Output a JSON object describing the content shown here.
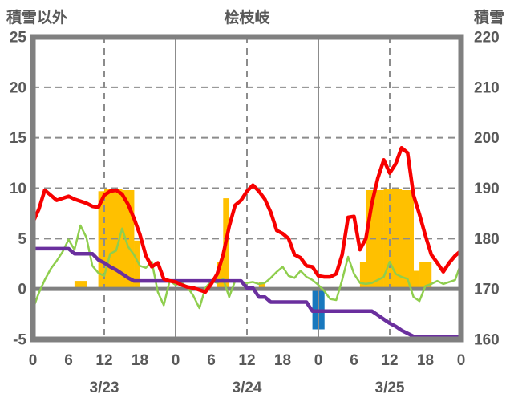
{
  "page": {
    "background": "#ffffff"
  },
  "header": {
    "left_axis_title": "積雪以外",
    "chart_title": "桧枝岐",
    "right_axis_title": "積雪"
  },
  "chart_data": {
    "type": "line+bar",
    "title": "桧枝岐",
    "left_axis": {
      "label": "積雪以外",
      "min": -5,
      "max": 25,
      "ticks": [
        25,
        20,
        15,
        10,
        5,
        0,
        -5
      ]
    },
    "right_axis": {
      "label": "積雪",
      "min": 160,
      "max": 220,
      "ticks": [
        220,
        210,
        200,
        190,
        180,
        170,
        160
      ]
    },
    "x_axis": {
      "total_hours": 72,
      "hour_tick_labels": [
        "0",
        "6",
        "12",
        "18"
      ],
      "day_labels": [
        "3/23",
        "3/24",
        "3/25"
      ],
      "day_label_hours": [
        12,
        36,
        60
      ],
      "solid_line_hours": [
        24,
        48
      ],
      "dashed_line_hours": [
        12,
        36,
        60
      ]
    },
    "grid": {
      "h_dashed_values": [
        20,
        15,
        10,
        5
      ],
      "zero_line_value": 0
    },
    "colors": {
      "red": "#f70000",
      "green": "#8fce4e",
      "purple": "#6a2f9e",
      "orange": "#ffc000",
      "blue": "#1878be",
      "grid": "#8c8c8c",
      "border": "#808080",
      "text": "#595959"
    },
    "series": {
      "red_line": {
        "type": "line",
        "axis": "left",
        "color_key": "red",
        "stroke_width": 4.5,
        "values": [
          6.6,
          7.9,
          9.8,
          9.3,
          8.8,
          9.0,
          9.2,
          8.9,
          8.7,
          8.5,
          8.2,
          8.1,
          9.3,
          9.7,
          9.8,
          9.4,
          8.4,
          7.0,
          5.4,
          3.3,
          2.2,
          2.6,
          1.0,
          0.8,
          0.7,
          0.4,
          0.2,
          0.1,
          -0.1,
          -0.3,
          0.5,
          1.5,
          3.4,
          6.2,
          8.3,
          8.8,
          9.7,
          10.3,
          9.7,
          8.9,
          7.6,
          5.8,
          5.5,
          5.0,
          3.4,
          3.1,
          2.3,
          2.2,
          1.3,
          1.2,
          1.2,
          1.5,
          3.4,
          7.1,
          7.2,
          3.9,
          5.0,
          8.5,
          11.0,
          12.8,
          11.5,
          12.4,
          14.0,
          13.5,
          9.3,
          7.4,
          5.3,
          3.4,
          2.6,
          1.7,
          2.6,
          3.3,
          3.8
        ]
      },
      "green_line": {
        "type": "line",
        "axis": "left",
        "color_key": "green",
        "stroke_width": 2.5,
        "values": [
          -2.0,
          -0.4,
          0.9,
          2.0,
          2.8,
          3.7,
          4.9,
          3.9,
          6.3,
          5.1,
          2.3,
          1.6,
          1.3,
          3.5,
          3.8,
          6.0,
          4.2,
          3.4,
          2.3,
          2.1,
          2.7,
          -0.3,
          -1.6,
          0.8,
          0.4,
          0.6,
          0.2,
          -0.7,
          -1.9,
          0.1,
          0.8,
          0.6,
          1.0,
          -0.8,
          0.8,
          0.7,
          0.6,
          0.7,
          0.5,
          0.6,
          1.1,
          1.7,
          2.2,
          1.3,
          1.1,
          1.8,
          1.2,
          0.9,
          0.4,
          -0.2,
          -1.0,
          -1.1,
          0.9,
          3.2,
          1.5,
          0.6,
          0.5,
          0.6,
          0.9,
          1.2,
          2.7,
          1.5,
          1.2,
          1.0,
          -0.8,
          -1.2,
          0.3,
          0.5,
          0.8,
          0.5,
          0.7,
          0.9,
          2.6
        ]
      },
      "purple_line": {
        "type": "line",
        "axis": "left",
        "color_key": "purple",
        "stroke_width": 4.5,
        "values": [
          4,
          4,
          4,
          4,
          4,
          4,
          4,
          3.5,
          3.5,
          3.5,
          3.5,
          2.9,
          2.6,
          2.2,
          1.9,
          1.5,
          1.1,
          0.8,
          0.8,
          0.8,
          0.8,
          0.8,
          0.8,
          0.8,
          0.8,
          0.8,
          0.8,
          0.8,
          0.8,
          0.8,
          0.8,
          0.8,
          0.8,
          0.8,
          0.8,
          0.8,
          0.1,
          0.1,
          -0.8,
          -0.8,
          -1.3,
          -1.3,
          -1.3,
          -1.3,
          -1.3,
          -1.3,
          -1.3,
          -2.2,
          -2.2,
          -2.2,
          -2.2,
          -2.2,
          -2.2,
          -2.2,
          -2.2,
          -2.2,
          -2.2,
          -2.2,
          -2.6,
          -3.0,
          -3.4,
          -3.7,
          -4.1,
          -4.4,
          -4.7,
          -4.7,
          -4.7,
          -4.7,
          -4.7,
          -4.7,
          -4.7,
          -4.7,
          -4.7
        ]
      },
      "orange_bars": {
        "type": "bar",
        "axis": "left",
        "color_key": "orange",
        "bars": [
          {
            "hour": 7,
            "value": 0.8
          },
          {
            "hour": 8,
            "value": 0.8
          },
          {
            "hour": 11,
            "value": 9.7
          },
          {
            "hour": 12,
            "value": 9.9
          },
          {
            "hour": 13,
            "value": 9.9
          },
          {
            "hour": 14,
            "value": 9.9
          },
          {
            "hour": 15,
            "value": 9.8
          },
          {
            "hour": 16,
            "value": 9.8
          },
          {
            "hour": 17,
            "value": 4.8
          },
          {
            "hour": 31,
            "value": 2.7
          },
          {
            "hour": 32,
            "value": 9.0
          },
          {
            "hour": 38,
            "value": 0.7
          },
          {
            "hour": 55,
            "value": 2.7
          },
          {
            "hour": 56,
            "value": 9.8
          },
          {
            "hour": 57,
            "value": 9.8
          },
          {
            "hour": 58,
            "value": 9.8
          },
          {
            "hour": 59,
            "value": 9.9
          },
          {
            "hour": 60,
            "value": 9.9
          },
          {
            "hour": 61,
            "value": 9.9
          },
          {
            "hour": 62,
            "value": 9.8
          },
          {
            "hour": 63,
            "value": 9.8
          },
          {
            "hour": 64,
            "value": 1.8
          },
          {
            "hour": 65,
            "value": 2.7
          },
          {
            "hour": 66,
            "value": 2.7
          }
        ]
      },
      "blue_bars": {
        "type": "bar",
        "axis": "left",
        "color_key": "blue",
        "bars": [
          {
            "hour": 47,
            "value": -4.0
          },
          {
            "hour": 48,
            "value": -4.0
          }
        ]
      }
    }
  }
}
